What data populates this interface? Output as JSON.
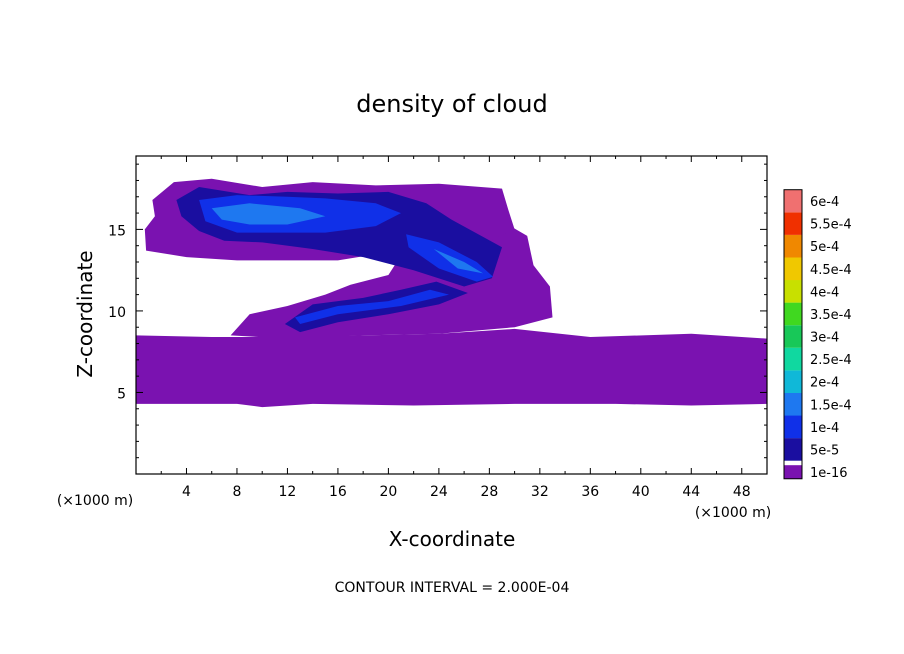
{
  "chart_data": {
    "type": "heatmap",
    "title": "density of cloud",
    "xlabel": "X-coordinate",
    "ylabel": "Z-coordinate",
    "x_unit_label": "(×1000 m)",
    "x_unit_label_right": "(×1000 m)",
    "xlim": [
      0,
      50
    ],
    "ylim": [
      0,
      19.5
    ],
    "x_ticks": [
      4,
      8,
      12,
      16,
      20,
      24,
      28,
      32,
      36,
      40,
      44,
      48
    ],
    "y_ticks": [
      5,
      10,
      15
    ],
    "grid": false,
    "colorbar": {
      "placement": "right",
      "levels": [
        "1e-16",
        "5e-5",
        "1e-4",
        "1.5e-4",
        "2e-4",
        "2.5e-4",
        "3e-4",
        "3.5e-4",
        "4e-4",
        "4.5e-4",
        "5e-4",
        "5.5e-4",
        "6e-4"
      ],
      "colors": [
        "#7a12b0",
        "#1a0ea0",
        "#1030e8",
        "#1e78f0",
        "#10b8d8",
        "#10d8a0",
        "#18c858",
        "#40d820",
        "#c8e000",
        "#f0c800",
        "#f08800",
        "#f03000",
        "#f07070"
      ]
    },
    "footnote": "CONTOUR INTERVAL = 2.000E-04",
    "regions": [
      {
        "level": 0,
        "points": [
          [
            0,
            4.3
          ],
          [
            8,
            4.3
          ],
          [
            10,
            4.1
          ],
          [
            14,
            4.3
          ],
          [
            22,
            4.2
          ],
          [
            30,
            4.3
          ],
          [
            38,
            4.3
          ],
          [
            44,
            4.2
          ],
          [
            50,
            4.3
          ],
          [
            50,
            8.3
          ],
          [
            44,
            8.6
          ],
          [
            36,
            8.4
          ],
          [
            30,
            8.9
          ],
          [
            24,
            8.6
          ],
          [
            18,
            8.5
          ],
          [
            12,
            8.4
          ],
          [
            6,
            8.4
          ],
          [
            0,
            8.5
          ]
        ]
      },
      {
        "level": 0,
        "points": [
          [
            7.5,
            8.5
          ],
          [
            9,
            9.8
          ],
          [
            12,
            10.3
          ],
          [
            15,
            11
          ],
          [
            17,
            11.6
          ],
          [
            20,
            12.2
          ],
          [
            21,
            13.4
          ],
          [
            24,
            14.2
          ],
          [
            29,
            15.5
          ],
          [
            31,
            14.6
          ],
          [
            31.5,
            12.8
          ],
          [
            32.8,
            11.5
          ],
          [
            33,
            9.6
          ],
          [
            30,
            9
          ],
          [
            24,
            8.6
          ],
          [
            18,
            8.5
          ],
          [
            12,
            8.3
          ]
        ]
      },
      {
        "level": 0,
        "points": [
          [
            1.3,
            16.8
          ],
          [
            3,
            17.9
          ],
          [
            6,
            18.1
          ],
          [
            10,
            17.6
          ],
          [
            14,
            17.9
          ],
          [
            19,
            17.7
          ],
          [
            24,
            17.8
          ],
          [
            29,
            17.5
          ],
          [
            29.5,
            16.2
          ],
          [
            30,
            15
          ],
          [
            28,
            14.3
          ],
          [
            24,
            13.8
          ],
          [
            20,
            13.6
          ],
          [
            16,
            13.1
          ],
          [
            12,
            13.1
          ],
          [
            8,
            13.1
          ],
          [
            4,
            13.3
          ],
          [
            0.8,
            13.7
          ],
          [
            0.7,
            15
          ],
          [
            1.5,
            15.8
          ]
        ]
      },
      {
        "level": 1,
        "points": [
          [
            3.2,
            16.8
          ],
          [
            5,
            17.6
          ],
          [
            9,
            17.1
          ],
          [
            12,
            17.3
          ],
          [
            16,
            17.2
          ],
          [
            20,
            17.3
          ],
          [
            23,
            16.6
          ],
          [
            25,
            15.6
          ],
          [
            29,
            13.9
          ],
          [
            28.2,
            12
          ],
          [
            26,
            11.5
          ],
          [
            22,
            12.5
          ],
          [
            18,
            13.3
          ],
          [
            14,
            13.8
          ],
          [
            10,
            14.2
          ],
          [
            7,
            14.3
          ],
          [
            5,
            14.9
          ],
          [
            3.6,
            15.8
          ]
        ]
      },
      {
        "level": 1,
        "points": [
          [
            11.8,
            9.2
          ],
          [
            14,
            10.4
          ],
          [
            18,
            10.8
          ],
          [
            21,
            11.3
          ],
          [
            23.8,
            11.8
          ],
          [
            26.3,
            11.1
          ],
          [
            24,
            10.4
          ],
          [
            20,
            9.8
          ],
          [
            16,
            9.3
          ],
          [
            13,
            8.7
          ]
        ]
      },
      {
        "level": 2,
        "points": [
          [
            5,
            16.8
          ],
          [
            8,
            17.1
          ],
          [
            12,
            17
          ],
          [
            15,
            16.9
          ],
          [
            19,
            16.6
          ],
          [
            21,
            16
          ],
          [
            19,
            15.2
          ],
          [
            15,
            14.8
          ],
          [
            12,
            14.8
          ],
          [
            8,
            14.8
          ],
          [
            5.5,
            15.5
          ]
        ]
      },
      {
        "level": 2,
        "points": [
          [
            21.4,
            14.7
          ],
          [
            24,
            14.2
          ],
          [
            27,
            13
          ],
          [
            28.3,
            12.1
          ],
          [
            27,
            11.8
          ],
          [
            24,
            12.6
          ],
          [
            21.6,
            13.9
          ]
        ]
      },
      {
        "level": 2,
        "points": [
          [
            12.6,
            9.6
          ],
          [
            16,
            10.3
          ],
          [
            20,
            10.6
          ],
          [
            23.3,
            11.3
          ],
          [
            24.8,
            11
          ],
          [
            21,
            10.3
          ],
          [
            16,
            9.8
          ],
          [
            13,
            9.2
          ]
        ]
      },
      {
        "level": 3,
        "points": [
          [
            6,
            16.3
          ],
          [
            9,
            16.6
          ],
          [
            13,
            16.3
          ],
          [
            15,
            15.8
          ],
          [
            12,
            15.3
          ],
          [
            9,
            15.3
          ],
          [
            6.8,
            15.6
          ]
        ]
      },
      {
        "level": 3,
        "points": [
          [
            23.6,
            13.8
          ],
          [
            26,
            13
          ],
          [
            27.5,
            12.3
          ],
          [
            25.5,
            12.6
          ]
        ]
      }
    ]
  }
}
